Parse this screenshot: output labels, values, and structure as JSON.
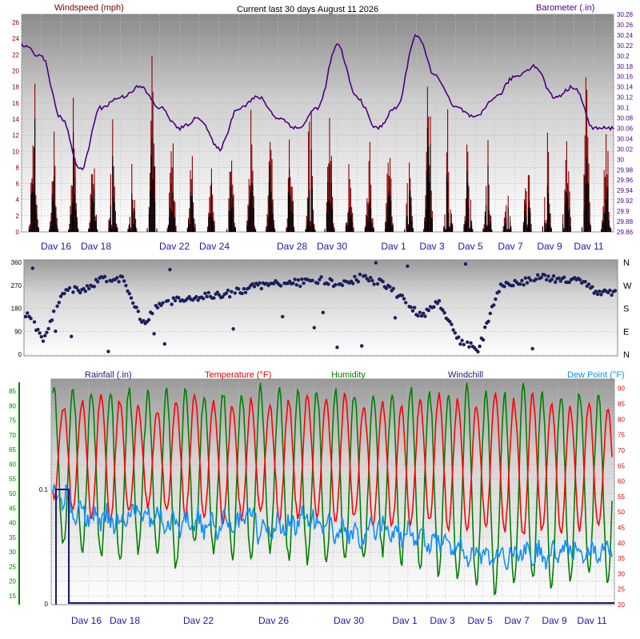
{
  "chart_data": [
    {
      "type": "line",
      "title": "Current last 30 days August 11 2026",
      "ylabel": "Windspeed (mph)",
      "y2label": "Barometer (.in)",
      "ylim": [
        0,
        27
      ],
      "y2lim": [
        29.86,
        30.28
      ],
      "yticks": [
        "0",
        "2",
        "4",
        "6",
        "8",
        "10",
        "12",
        "14",
        "16",
        "18",
        "20",
        "22",
        "24",
        "26"
      ],
      "y2ticks": [
        "29.86",
        "29.88",
        "29.9",
        "29.92",
        "29.94",
        "29.96",
        "29.98",
        "30",
        "30.02",
        "30.04",
        "30.06",
        "30.08",
        "30.1",
        "30.12",
        "30.14",
        "30.16",
        "30.18",
        "30.2",
        "30.22",
        "30.24",
        "30.26",
        "30.28"
      ],
      "x_labels": [
        "Dav 16",
        "Dav 18",
        "Dav 22",
        "Dav 24",
        "Dav 28",
        "Dav 30",
        "Dav 1",
        "Dav 3",
        "Dav 5",
        "Dav 7",
        "Dav 9",
        "Dav 11"
      ],
      "colors": {
        "wind": "#8b0000",
        "gust": "#000000",
        "baro": "#4b0082"
      },
      "wind_daily_peak": [
        22,
        14,
        18,
        12,
        20,
        10,
        24,
        16,
        11,
        8,
        12,
        16,
        18,
        14,
        20,
        22,
        10,
        12,
        14,
        15,
        26,
        18,
        14,
        12,
        10,
        14,
        16,
        20,
        22,
        18
      ],
      "barometer": [
        30.22,
        30.2,
        30.08,
        29.98,
        30.1,
        30.12,
        30.14,
        30.1,
        30.06,
        30.08,
        30.02,
        30.1,
        30.12,
        30.08,
        30.06,
        30.1,
        30.22,
        30.12,
        30.06,
        30.1,
        30.24,
        30.16,
        30.1,
        30.08,
        30.12,
        30.16,
        30.18,
        30.12,
        30.14,
        30.06
      ]
    },
    {
      "type": "scatter",
      "ylabel": "",
      "ylim": [
        0,
        360
      ],
      "yticks": [
        "0",
        "90",
        "180",
        "270",
        "360"
      ],
      "y2ticks": [
        "N",
        "E",
        "S",
        "W",
        "N"
      ],
      "color": "#1a1f5c",
      "wind_direction_daily": [
        170,
        60,
        250,
        250,
        300,
        290,
        120,
        210,
        210,
        230,
        230,
        250,
        270,
        280,
        280,
        290,
        270,
        300,
        280,
        230,
        150,
        200,
        50,
        20,
        260,
        280,
        300,
        290,
        300,
        240
      ]
    },
    {
      "type": "line",
      "ylim": [
        12,
        88
      ],
      "y2lim": [
        20,
        92
      ],
      "yticks": [
        "15",
        "20",
        "25",
        "30",
        "35",
        "40",
        "45",
        "50",
        "55",
        "60",
        "65",
        "70",
        "75",
        "80",
        "85"
      ],
      "y2ticks": [
        "20",
        "25",
        "30",
        "35",
        "40",
        "45",
        "50",
        "55",
        "60",
        "65",
        "70",
        "75",
        "80",
        "85",
        "90"
      ],
      "rain_ticks": [
        "0",
        "0.1"
      ],
      "x_labels": [
        "Dav 16",
        "Dav 18",
        "Dav 22",
        "Dav 26",
        "Dav 30",
        "Dav 1",
        "Dav 3",
        "Dav 5",
        "Dav 7",
        "Dav 9",
        "Dav 11"
      ],
      "series": [
        {
          "name": "Rainfall (.in)",
          "color": "#1a1a7a"
        },
        {
          "name": "Temperature (°F)",
          "color": "#ff0000",
          "daily_high": [
            84,
            86,
            88,
            86,
            84,
            82,
            86,
            88,
            86,
            84,
            86,
            84,
            86,
            88,
            86,
            88,
            84,
            86,
            84,
            86,
            88,
            86,
            84,
            88,
            86,
            88,
            86,
            84,
            86,
            84
          ],
          "daily_low": [
            55,
            50,
            48,
            47,
            50,
            52,
            50,
            49,
            48,
            46,
            48,
            50,
            47,
            48,
            49,
            47,
            48,
            46,
            45,
            46,
            47,
            45,
            44,
            45,
            44,
            42,
            44,
            43,
            44,
            45
          ]
        },
        {
          "name": "Humidity",
          "color": "#008000",
          "daily_high": [
            85,
            86,
            85,
            84,
            86,
            84,
            85,
            86,
            84,
            85,
            84,
            86,
            85,
            84,
            85,
            86,
            84,
            85,
            84,
            86,
            85,
            84,
            86,
            85,
            84,
            86,
            85,
            84,
            85,
            84
          ],
          "daily_low": [
            32,
            30,
            28,
            26,
            30,
            28,
            25,
            32,
            30,
            28,
            26,
            30,
            28,
            27,
            25,
            26,
            28,
            30,
            26,
            24,
            22,
            20,
            18,
            16,
            18,
            20,
            18,
            20,
            22,
            20
          ]
        },
        {
          "name": "Windchill",
          "color": "#1a1a7a"
        },
        {
          "name": "Dew Point (°F)",
          "color": "#0f8fff",
          "daily": [
            55,
            50,
            48,
            47,
            50,
            48,
            46,
            47,
            45,
            46,
            48,
            44,
            46,
            48,
            45,
            44,
            42,
            45,
            43,
            42,
            40,
            38,
            36,
            35,
            36,
            37,
            36,
            38,
            37,
            38
          ]
        }
      ],
      "rain_total": 0.1
    }
  ]
}
